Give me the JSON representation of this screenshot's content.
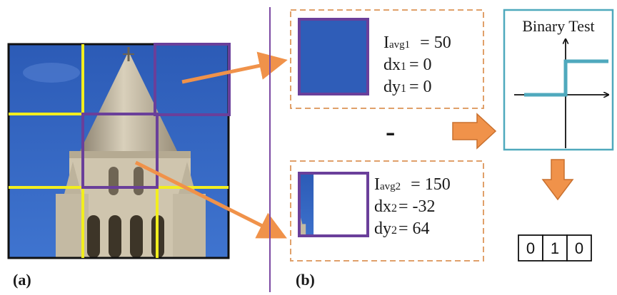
{
  "panel_a": {
    "label": "(a)"
  },
  "panel_b": {
    "label": "(b)"
  },
  "patch1": {
    "iavg_main": "I",
    "iavg_sub": "avg1",
    "iavg_value": "= 50",
    "dx_main": "dx",
    "dx_sub": "1",
    "dx_value": "= 0",
    "dy_main": "dy",
    "dy_sub": "1",
    "dy_value": "= 0"
  },
  "patch2": {
    "iavg_main": "I",
    "iavg_sub": "avg2",
    "iavg_value": "= 150",
    "dx_main": "dx",
    "dx_sub": "2",
    "dx_value": "= -32",
    "dy_main": "dy",
    "dy_sub": "2",
    "dy_value": "= 64"
  },
  "minus_sign": "-",
  "binary_test": {
    "title": "Binary Test"
  },
  "output_bits": [
    "0",
    "1",
    "0"
  ],
  "colors": {
    "grid_yellow": "#f2ee1e",
    "patch_purple": "#6a3f9a",
    "arrow_orange": "#f0924a",
    "dashed_orange": "#e0a06a",
    "step_teal": "#4fa9bd",
    "divider_purple": "#7c4aa3",
    "sky_blue": "#2f5db8"
  },
  "icons": {
    "arrows": "orange-arrow-icon",
    "axes": "axis-arrow-icon"
  }
}
